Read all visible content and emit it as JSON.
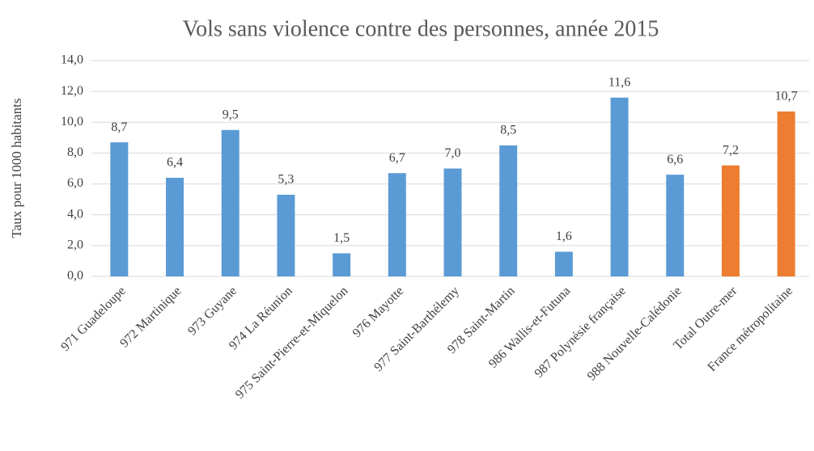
{
  "chart_data": {
    "type": "bar",
    "title": "Vols sans violence contre des personnes, année 2015",
    "y_label": "Taux pour 1000 habitants",
    "categories": [
      "971 Guadeloupe",
      "972 Martinique",
      "973 Guyane",
      "974 La Réunion",
      "975 Saint-Pierre-et-Miquelon",
      "976 Mayotte",
      "977 Saint-Barthélemy",
      "978 Saint-Martin",
      "986 Wallis-et-Futuna",
      "987 Polynésie française",
      "988 Nouvelle-Calédonie",
      "Total Outre-mer",
      "France métropolitaine"
    ],
    "values": [
      8.7,
      6.4,
      9.5,
      5.3,
      1.5,
      6.7,
      7.0,
      8.5,
      1.6,
      11.6,
      6.6,
      7.2,
      10.7
    ],
    "value_labels": [
      "8,7",
      "6,4",
      "9,5",
      "5,3",
      "1,5",
      "6,7",
      "7,0",
      "8,5",
      "1,6",
      "11,6",
      "6,6",
      "7,2",
      "10,7"
    ],
    "colors": [
      "#5b9bd5",
      "#5b9bd5",
      "#5b9bd5",
      "#5b9bd5",
      "#5b9bd5",
      "#5b9bd5",
      "#5b9bd5",
      "#5b9bd5",
      "#5b9bd5",
      "#5b9bd5",
      "#5b9bd5",
      "#ed7d31",
      "#ed7d31"
    ],
    "ylim": [
      0,
      14
    ],
    "yticks": [
      {
        "value": 0,
        "label": "0,0"
      },
      {
        "value": 2,
        "label": "2,0"
      },
      {
        "value": 4,
        "label": "4,0"
      },
      {
        "value": 6,
        "label": "6,0"
      },
      {
        "value": 8,
        "label": "8,0"
      },
      {
        "value": 10,
        "label": "10,0"
      },
      {
        "value": 12,
        "label": "12,0"
      },
      {
        "value": 14,
        "label": "14,0"
      }
    ],
    "grid": true
  }
}
